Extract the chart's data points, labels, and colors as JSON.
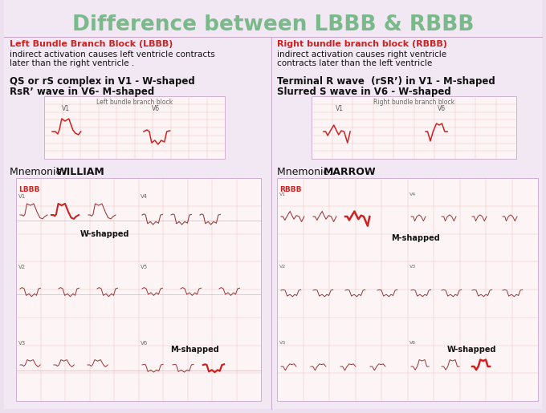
{
  "title": "Difference between LBBB & RBBB",
  "title_color": "#7aba8a",
  "bg_color": "#ede0ee",
  "text_area_bg": "#f2e8f3",
  "ecg_bg": "#fdf5f5",
  "ecg_grid": "#f0c0c0",
  "ecg_border": "#d8b8d8",
  "red_color": "#cc2222",
  "dark_red": "#993333",
  "dark_text": "#111111",
  "gray_text": "#444444",
  "mid_line_color": "#ccaacc",
  "left_header": "Left Bundle Branch Block (LBBB)",
  "right_header": "Right bundle branch block (RBBB)",
  "left_desc1": "indirect activation causes left ventricle contracts",
  "left_desc2": "later than the right ventricle .",
  "right_desc1": "indirect activation causes right ventricle",
  "right_desc2": "contracts later than the left ventricle",
  "left_wave1": "QS or rS complex in V1 - W-shaped",
  "left_wave2": "RsR’ wave in V6- M-shaped",
  "right_wave1": "Terminal R wave  (rSR’) in V1 - M-shaped",
  "right_wave2": "Slurred S wave in V6 - W-shaped",
  "left_ecg_title": "Left bundle branch block",
  "right_ecg_title": "Right bundle branch block",
  "left_mnemonic_plain": "Mnemonic: ",
  "left_mnemonic_bold": "WILLIAM",
  "right_mnemonic_plain": "Mnemonic: ",
  "right_mnemonic_bold": "MARROW",
  "lbbb_label": "LBBB",
  "rbbb_label": "RBBB",
  "w_shapped": "W-shapped",
  "m_shapped": "M-shapped"
}
